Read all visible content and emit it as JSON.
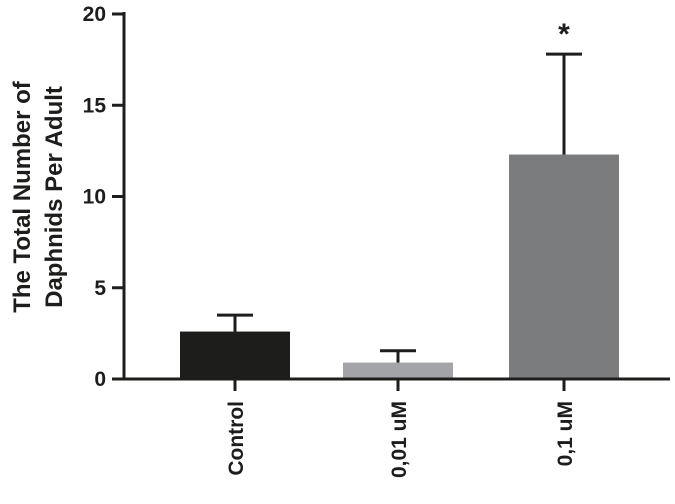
{
  "chart_data": {
    "type": "bar",
    "title": "",
    "xlabel": "",
    "ylabel_lines": [
      "The Total Number of",
      "Daphnids Per Adult"
    ],
    "categories": [
      "Control",
      "0,01 uM",
      "0,1 uM"
    ],
    "values": [
      2.6,
      0.9,
      12.3
    ],
    "error_upper": [
      3.5,
      1.55,
      17.8
    ],
    "bar_colors": [
      "#1d1d1b",
      "#a3a4a8",
      "#7a7b7d"
    ],
    "annotations": [
      "",
      "",
      "*"
    ],
    "ylim": [
      0,
      20
    ],
    "yticks": [
      "0",
      "5",
      "10",
      "15",
      "20"
    ],
    "grid": false
  }
}
